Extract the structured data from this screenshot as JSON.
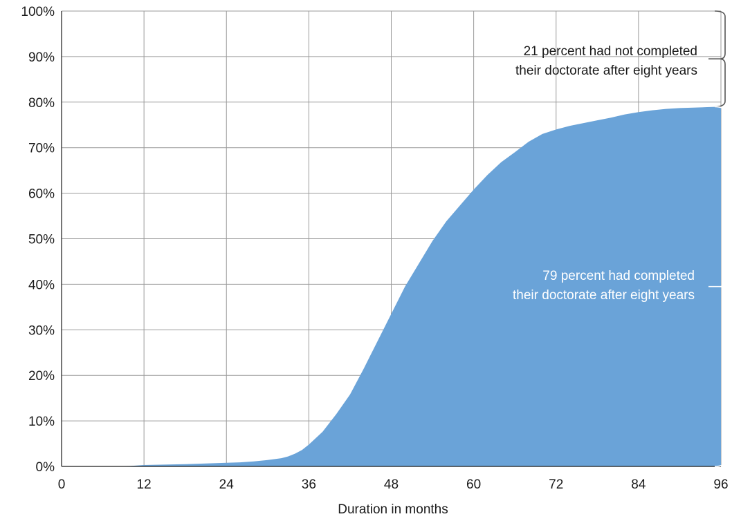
{
  "chart_data": {
    "type": "area",
    "title": "",
    "xlabel": "Duration in months",
    "ylabel": "",
    "xlim": [
      0,
      96
    ],
    "ylim": [
      0,
      100
    ],
    "x_ticks": [
      0,
      12,
      24,
      36,
      48,
      60,
      72,
      84,
      96
    ],
    "y_ticks": [
      0,
      10,
      20,
      30,
      40,
      50,
      60,
      70,
      80,
      90,
      100
    ],
    "y_tick_suffix": "%",
    "grid": true,
    "fill_color": "#6aa3d8",
    "series": [
      {
        "x": [
          0,
          6,
          10,
          12,
          18,
          24,
          26,
          28,
          30,
          32,
          33,
          34,
          35,
          36,
          37,
          38,
          40,
          42,
          44,
          45,
          46,
          48,
          50,
          52,
          54,
          56,
          58,
          60,
          62,
          64,
          66,
          68,
          70,
          72,
          74,
          76,
          78,
          80,
          82,
          84,
          86,
          88,
          90,
          92,
          94,
          96
        ],
        "values": [
          0,
          0,
          0.1,
          0.3,
          0.5,
          0.8,
          0.9,
          1.1,
          1.4,
          1.8,
          2.2,
          2.8,
          3.6,
          4.8,
          6.2,
          7.6,
          11.5,
          15.8,
          21.5,
          24.5,
          27.5,
          33.5,
          39.5,
          44.5,
          49.5,
          53.8,
          57.3,
          60.8,
          64.0,
          66.8,
          69.0,
          71.3,
          73.0,
          74.0,
          74.8,
          75.4,
          76.0,
          76.6,
          77.3,
          77.8,
          78.2,
          78.5,
          78.7,
          78.8,
          78.9,
          79.0
        ]
      }
    ],
    "annotations": {
      "top_line1": "21 percent had not completed",
      "top_line2": "their doctorate after eight years",
      "bottom_line1": "79 percent had completed",
      "bottom_line2": "their doctorate after eight years"
    },
    "brackets": [
      {
        "from": 79,
        "to": 100
      },
      {
        "from": 0,
        "to": 79
      }
    ]
  }
}
